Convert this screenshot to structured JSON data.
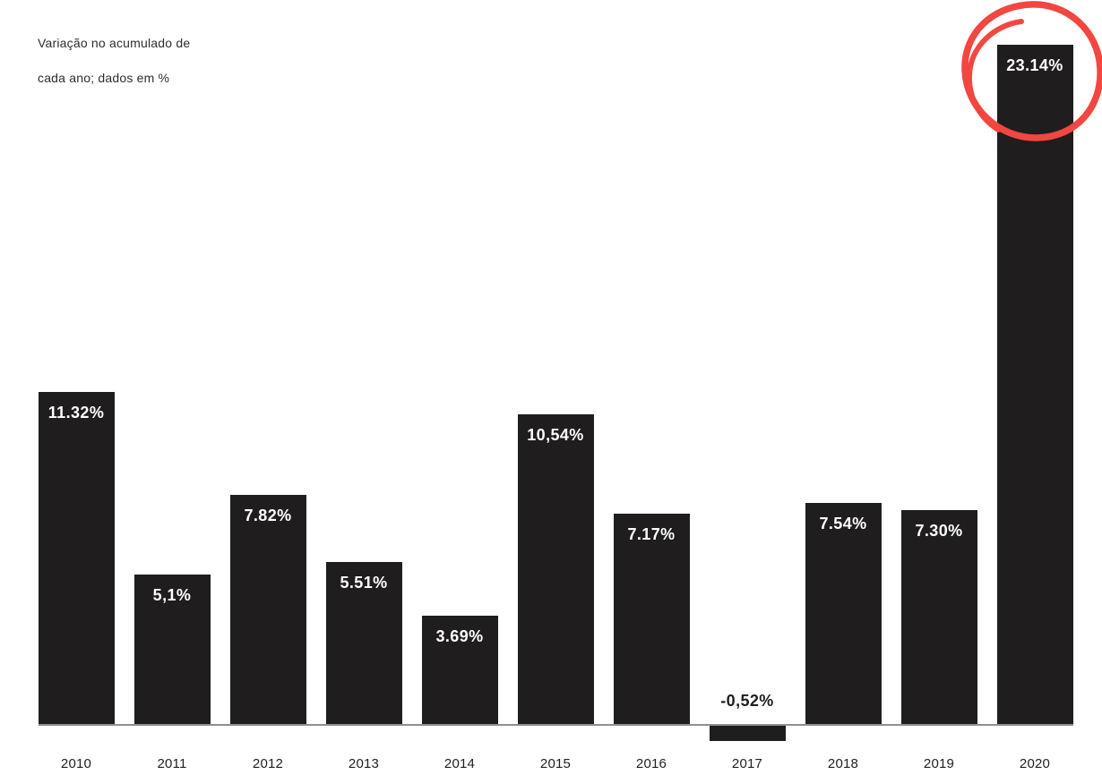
{
  "header": {
    "subtitle_line1": "Variação no acumulado de",
    "subtitle_line2": "cada ano; dados em %"
  },
  "chart_data": {
    "type": "bar",
    "title": "Variação no acumulado de cada ano; dados em %",
    "categories": [
      "2010",
      "2011",
      "2012",
      "2013",
      "2014",
      "2015",
      "2016",
      "2017",
      "2018",
      "2019",
      "2020"
    ],
    "values": [
      11.32,
      5.1,
      7.82,
      5.51,
      3.69,
      10.54,
      7.17,
      -0.52,
      7.54,
      7.3,
      23.14
    ],
    "bar_labels": [
      "11.32%",
      "5,1%",
      "7.82%",
      "5.51%",
      "3.69%",
      "10,54%",
      "7.17%",
      "-0,52%",
      "7.54%",
      "7.30%",
      "23.14%"
    ],
    "highlighted_category": "2020",
    "annotation": "hand-drawn red circle around top of 2020 bar",
    "xlabel": "",
    "ylabel": "",
    "ylim": [
      -1,
      24
    ],
    "grid": false,
    "legend": false,
    "colors": {
      "bar": "#1f1d1e",
      "bar_label": "#ffffff",
      "negative_label": "#1f1d1e",
      "axis_line": "#8f8f8f",
      "axis_label": "#1f1f1f",
      "highlight": "#f24740",
      "background": "#ffffff"
    }
  }
}
